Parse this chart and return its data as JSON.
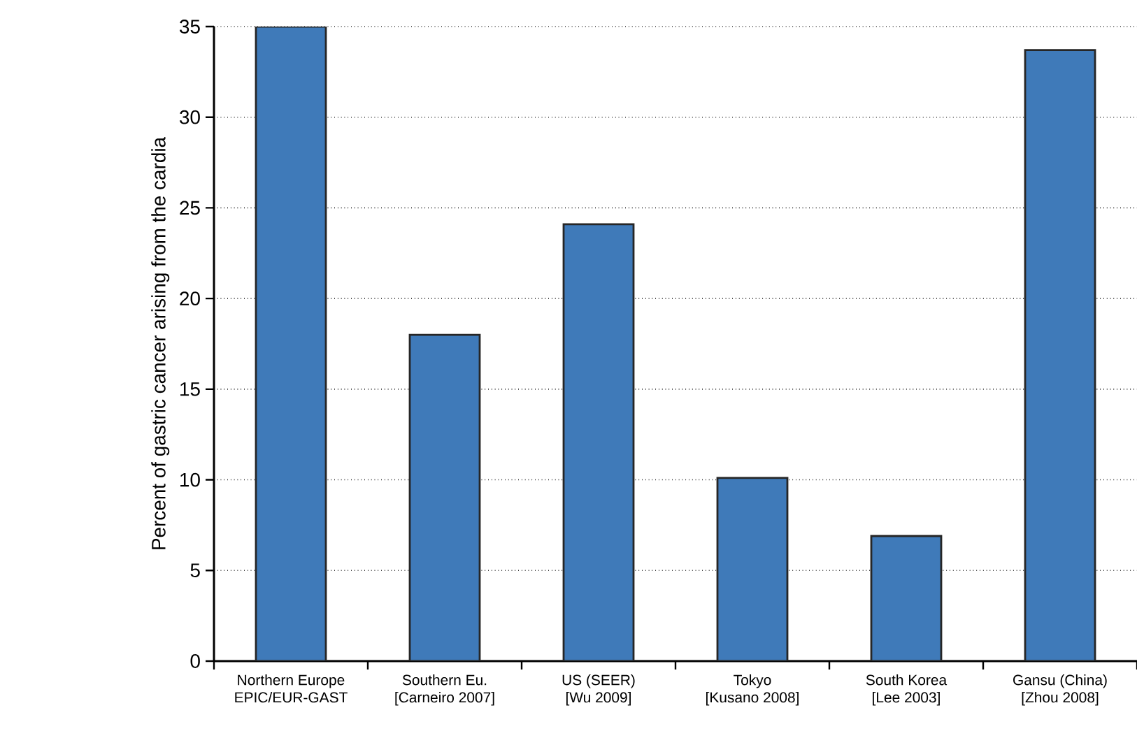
{
  "chart_data": {
    "type": "bar",
    "ylabel": "Percent of gastric cancer arising from the cardia",
    "categories": [
      "Northern Europe\nEPIC/EUR-GAST",
      "Southern Eu.\n[Carneiro 2007]",
      "US (SEER)\n[Wu 2009]",
      "Tokyo\n[Kusano 2008]",
      "South Korea\n[Lee 2003]",
      "Gansu (China)\n[Zhou 2008]"
    ],
    "values": [
      35,
      18,
      24.1,
      10.1,
      6.9,
      33.7
    ],
    "color": "#3f7ab9",
    "ylim": [
      0,
      35
    ],
    "yticks": [
      0,
      5,
      10,
      15,
      20,
      25,
      30,
      35
    ],
    "grid": "y"
  }
}
